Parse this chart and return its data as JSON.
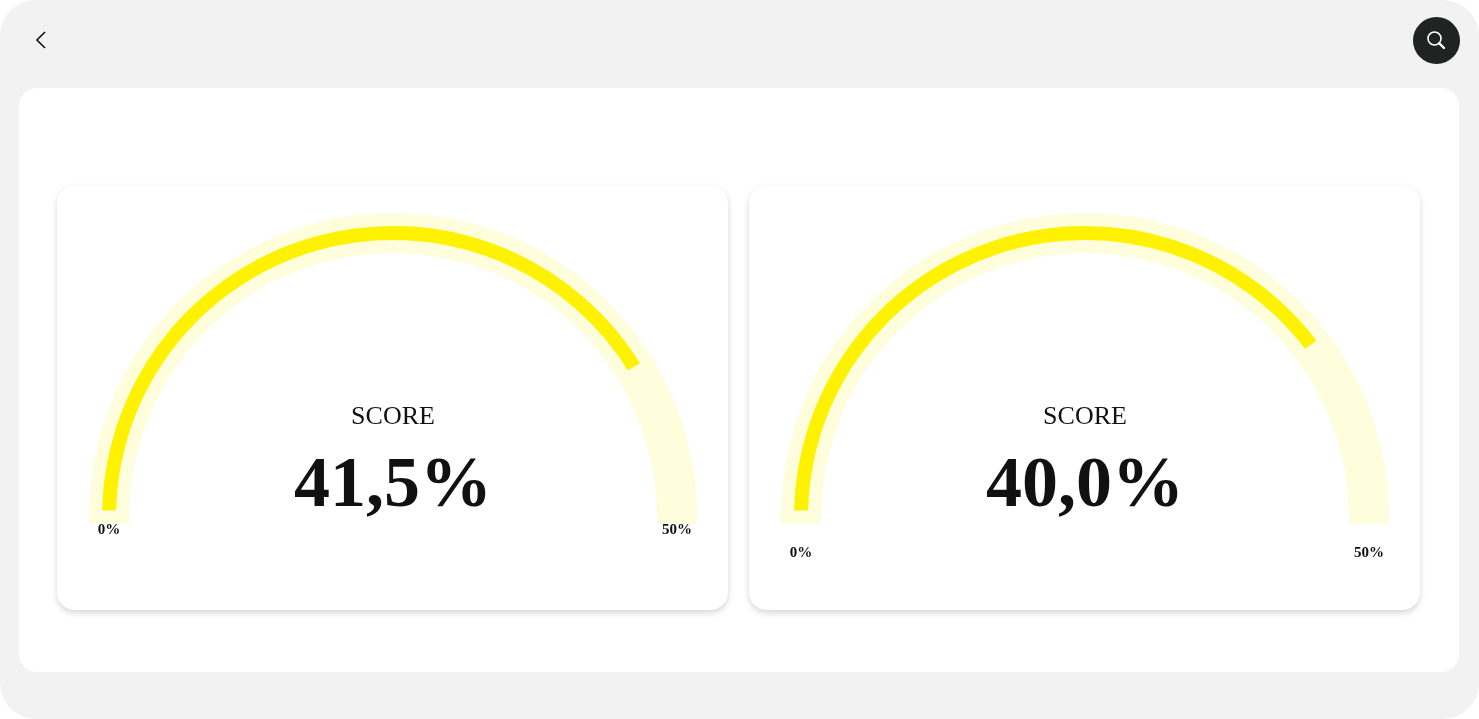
{
  "chart_data": [
    {
      "type": "donut",
      "title": "SCORE",
      "categories": [
        null,
        null
      ],
      "values": [
        41.5,
        8.5
      ],
      "colors": [
        "#fff200",
        "#fefddc"
      ],
      "value_labels": [
        "41,5%",
        null
      ],
      "annotations": [
        "0%",
        "50%"
      ]
    },
    {
      "type": "donut",
      "title": "SCORE",
      "categories": [
        null,
        null
      ],
      "values": [
        40.0,
        10.0
      ],
      "colors": [
        "#fff200",
        "#fefddc"
      ],
      "value_labels": [
        "40,0%",
        null
      ],
      "annotations": [
        "0%",
        "50%"
      ]
    }
  ]
}
